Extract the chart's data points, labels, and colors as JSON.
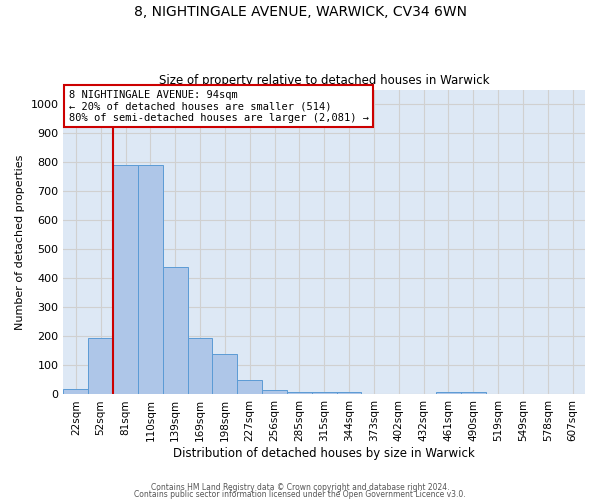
{
  "title1": "8, NIGHTINGALE AVENUE, WARWICK, CV34 6WN",
  "title2": "Size of property relative to detached houses in Warwick",
  "xlabel": "Distribution of detached houses by size in Warwick",
  "ylabel": "Number of detached properties",
  "bar_labels": [
    "22sqm",
    "52sqm",
    "81sqm",
    "110sqm",
    "139sqm",
    "169sqm",
    "198sqm",
    "227sqm",
    "256sqm",
    "285sqm",
    "315sqm",
    "344sqm",
    "373sqm",
    "402sqm",
    "432sqm",
    "461sqm",
    "490sqm",
    "519sqm",
    "549sqm",
    "578sqm",
    "607sqm"
  ],
  "bar_values": [
    20,
    195,
    790,
    790,
    440,
    195,
    140,
    50,
    15,
    10,
    10,
    10,
    0,
    0,
    0,
    10,
    10,
    0,
    0,
    0,
    0
  ],
  "bar_color": "#aec6e8",
  "bar_edge_color": "#5b9bd5",
  "grid_color": "#d0d0d0",
  "bg_color": "#dde8f5",
  "vline_color": "#cc0000",
  "annotation_text": "8 NIGHTINGALE AVENUE: 94sqm\n← 20% of detached houses are smaller (514)\n80% of semi-detached houses are larger (2,081) →",
  "annotation_box_color": "#cc0000",
  "ylim": [
    0,
    1050
  ],
  "yticks": [
    0,
    100,
    200,
    300,
    400,
    500,
    600,
    700,
    800,
    900,
    1000
  ],
  "footer1": "Contains HM Land Registry data © Crown copyright and database right 2024.",
  "footer2": "Contains public sector information licensed under the Open Government Licence v3.0."
}
